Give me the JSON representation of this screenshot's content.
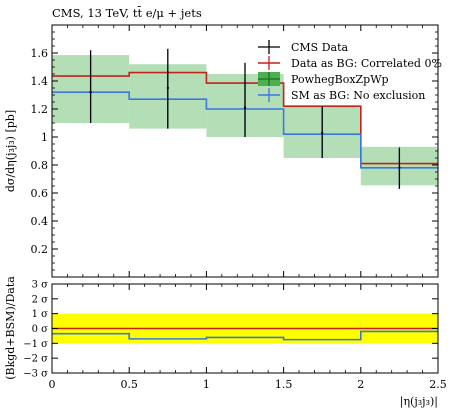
{
  "chart_data": [
    {
      "type": "line",
      "title": "CMS, 13 TeV, tt̄ e/μ + jets",
      "ylabel": "dσ/dη(j₃j₃) [pb]",
      "xlabel": "",
      "xlim": [
        0,
        2.5
      ],
      "ylim": [
        0,
        1.8
      ],
      "ytick_labels": [
        "0.2",
        "0.4",
        "0.6",
        "0.8",
        "1",
        "1.2",
        "1.4",
        "1.6"
      ],
      "grid": false,
      "legend_position": "top-right",
      "x_edges": [
        0,
        0.5,
        1.0,
        1.5,
        2.0,
        2.5
      ],
      "series": [
        {
          "name": "CMS Data",
          "style": "points",
          "color": "#000000",
          "x_centers": [
            0.25,
            0.75,
            1.25,
            1.75,
            2.25
          ],
          "values": [
            1.32,
            1.35,
            1.21,
            1.03,
            0.78
          ],
          "err_low": [
            1.1,
            1.06,
            1.0,
            0.85,
            0.63
          ],
          "err_high": [
            1.62,
            1.63,
            1.53,
            1.22,
            0.92
          ]
        },
        {
          "name": "Data as BG: Correlated 0%",
          "style": "step",
          "color": "#c2241b",
          "values": [
            1.435,
            1.46,
            1.385,
            1.22,
            0.81
          ]
        },
        {
          "name": "PowhegBoxZpWp",
          "style": "band",
          "color": "#2a9a2a",
          "band_color": "#b4dfb6",
          "values": [
            1.32,
            1.27,
            1.19,
            1.02,
            0.78
          ],
          "band_low": [
            1.1,
            1.06,
            1.0,
            0.85,
            0.655
          ],
          "band_high": [
            1.585,
            1.52,
            1.45,
            1.22,
            0.93
          ]
        },
        {
          "name": "SM as BG: No exclusion",
          "style": "step",
          "color": "#3a78e0",
          "values": [
            1.32,
            1.27,
            1.2,
            1.02,
            0.78
          ],
          "err_low": [
            1.1,
            1.06,
            1.0,
            0.85,
            0.63
          ],
          "err_high": [
            1.58,
            1.5,
            1.41,
            1.22,
            0.93
          ]
        }
      ]
    },
    {
      "type": "line",
      "title": "",
      "ylabel": "(Bkgd+BSM)/Data",
      "xlabel": "|η(j₃j₃)|",
      "xlim": [
        0,
        2.5
      ],
      "ylim": [
        -3,
        3
      ],
      "xtick_labels": [
        "0",
        "0.5",
        "1",
        "1.5",
        "2",
        "2.5"
      ],
      "ytick_labels": [
        "3 σ",
        "2 σ",
        "1 σ",
        "0 σ",
        "−1 σ",
        "−2 σ",
        "−3 σ"
      ],
      "grid": false,
      "x_edges": [
        0,
        0.5,
        1.0,
        1.5,
        2.0,
        2.5
      ],
      "band": {
        "low": -1,
        "high": 1,
        "color": "#ffff00"
      },
      "series": [
        {
          "name": "",
          "style": "step",
          "color": "#c2241b",
          "values": [
            0,
            0,
            0,
            0,
            0
          ]
        },
        {
          "name": "",
          "style": "step",
          "color": "#3a78e0",
          "values": [
            -0.35,
            -0.7,
            -0.6,
            -0.75,
            -0.2
          ]
        }
      ]
    }
  ]
}
